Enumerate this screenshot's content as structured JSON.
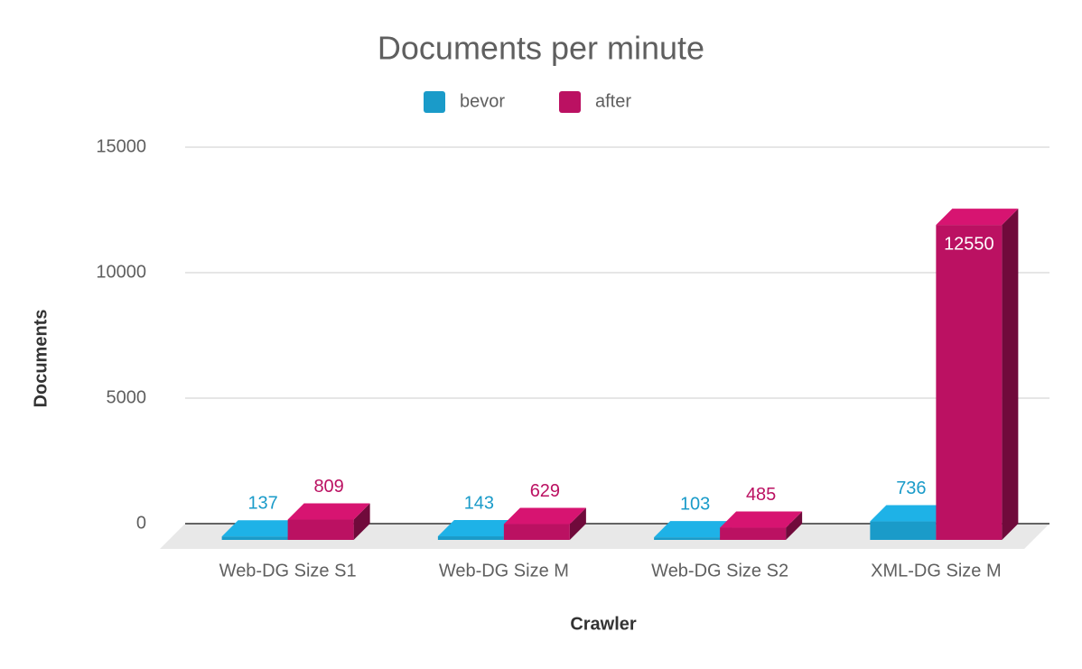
{
  "chart_data": {
    "type": "bar3d",
    "title": "Documents per minute",
    "x_label": "Crawler",
    "y_label": "Documents",
    "categories": [
      "Web-DG Size S1",
      "Web-DG Size M",
      "Web-DG Size S2",
      "XML-DG Size M"
    ],
    "series": [
      {
        "name": "bevor",
        "color": "#1a9bc9",
        "values": [
          137,
          143,
          103,
          736
        ]
      },
      {
        "name": "after",
        "color": "#bb1162",
        "values": [
          809,
          629,
          485,
          12550
        ]
      }
    ],
    "ylim": [
      0,
      15000
    ],
    "yticks": [
      0,
      5000,
      10000,
      15000
    ],
    "grid": true,
    "legend": "top"
  }
}
